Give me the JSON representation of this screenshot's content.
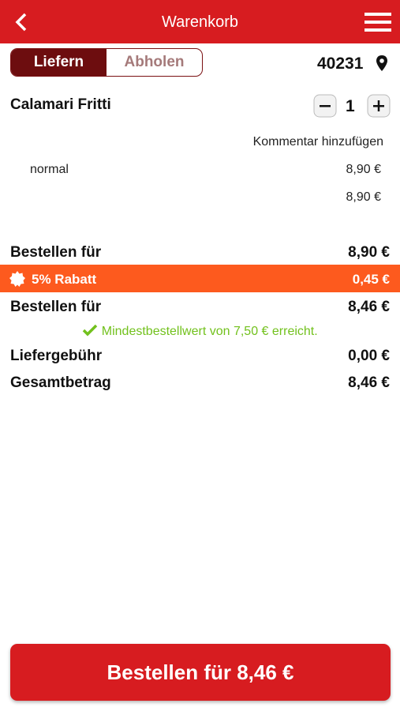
{
  "header": {
    "title": "Warenkorb"
  },
  "mode_toggle": {
    "options": [
      "Liefern",
      "Abholen"
    ]
  },
  "postal_code": "40231",
  "cart_item": {
    "name": "Calamari Fritti",
    "quantity": "1",
    "comment_link": "Kommentar hinzufügen",
    "option": "normal",
    "option_price": "8,90 €",
    "item_total": "8,90 €"
  },
  "summary": {
    "subtotal": {
      "label": "Bestellen für",
      "value": "8,90 €"
    },
    "discount": {
      "label": "5% Rabatt",
      "value": "0,45 €"
    },
    "discounted": {
      "label": "Bestellen für",
      "value": "8,46 €"
    },
    "minimum_note": "Mindestbestellwert von 7,50 € erreicht.",
    "delivery_fee": {
      "label": "Liefergebühr",
      "value": "0,00 €"
    },
    "total": {
      "label": "Gesamtbetrag",
      "value": "8,46 €"
    }
  },
  "order_button": "Bestellen für 8,46 €"
}
